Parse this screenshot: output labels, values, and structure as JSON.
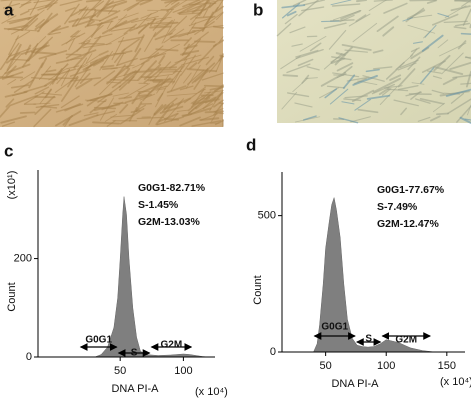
{
  "panels": {
    "a": {
      "label": "a"
    },
    "b": {
      "label": "b"
    }
  },
  "chart_data": [
    {
      "type": "area",
      "panel_label": "c",
      "color": "#7f7f7f",
      "xlabel": "DNA PI-A",
      "x_unit_label": "(x 10⁴)",
      "ylabel": "Count",
      "y_unit_label": "(x10¹)",
      "x": [
        30,
        35,
        40,
        45,
        48,
        50,
        52,
        53,
        55,
        57,
        60,
        63,
        66,
        70,
        80,
        90,
        100,
        105,
        110,
        115,
        120
      ],
      "values": [
        0,
        5,
        20,
        60,
        120,
        200,
        290,
        326,
        290,
        200,
        100,
        40,
        12,
        5,
        3,
        4,
        6,
        5,
        3,
        1,
        0
      ],
      "xlim": [
        -15,
        125
      ],
      "ylim": [
        0,
        380
      ],
      "xticks": [
        50,
        100
      ],
      "yticks": [
        0,
        200
      ],
      "annotations": [
        "G0G1-82.71%",
        "S-1.45%",
        "G2M-13.03%"
      ],
      "gates": [
        {
          "label": "G0G1",
          "range": [
            18,
            48
          ]
        },
        {
          "label": "S",
          "range": [
            48,
            74
          ]
        },
        {
          "label": "G2M",
          "range": [
            74,
            107
          ]
        }
      ]
    },
    {
      "type": "area",
      "panel_label": "d",
      "color": "#7f7f7f",
      "xlabel": "DNA PI-A",
      "x_unit_label": "(x 10⁴)",
      "ylabel": "Count",
      "x": [
        40,
        43,
        45,
        48,
        50,
        53,
        55,
        57,
        59,
        62,
        65,
        68,
        72,
        76,
        80,
        85,
        90,
        95,
        100,
        105,
        110,
        115,
        120,
        130,
        140
      ],
      "values": [
        0,
        30,
        100,
        250,
        380,
        480,
        540,
        566,
        520,
        420,
        250,
        120,
        50,
        25,
        20,
        18,
        20,
        30,
        45,
        40,
        35,
        25,
        15,
        5,
        0
      ],
      "xlim": [
        14,
        165
      ],
      "ylim": [
        0,
        660
      ],
      "xticks": [
        50,
        100,
        150
      ],
      "yticks": [
        0,
        500
      ],
      "annotations": [
        "G0G1-77.67%",
        "S-7.49%",
        "G2M-12.47%"
      ],
      "gates": [
        {
          "label": "G0G1",
          "range": [
            40,
            75
          ]
        },
        {
          "label": "S",
          "range": [
            75,
            96
          ]
        },
        {
          "label": "G2M",
          "range": [
            96,
            137
          ]
        }
      ]
    }
  ]
}
